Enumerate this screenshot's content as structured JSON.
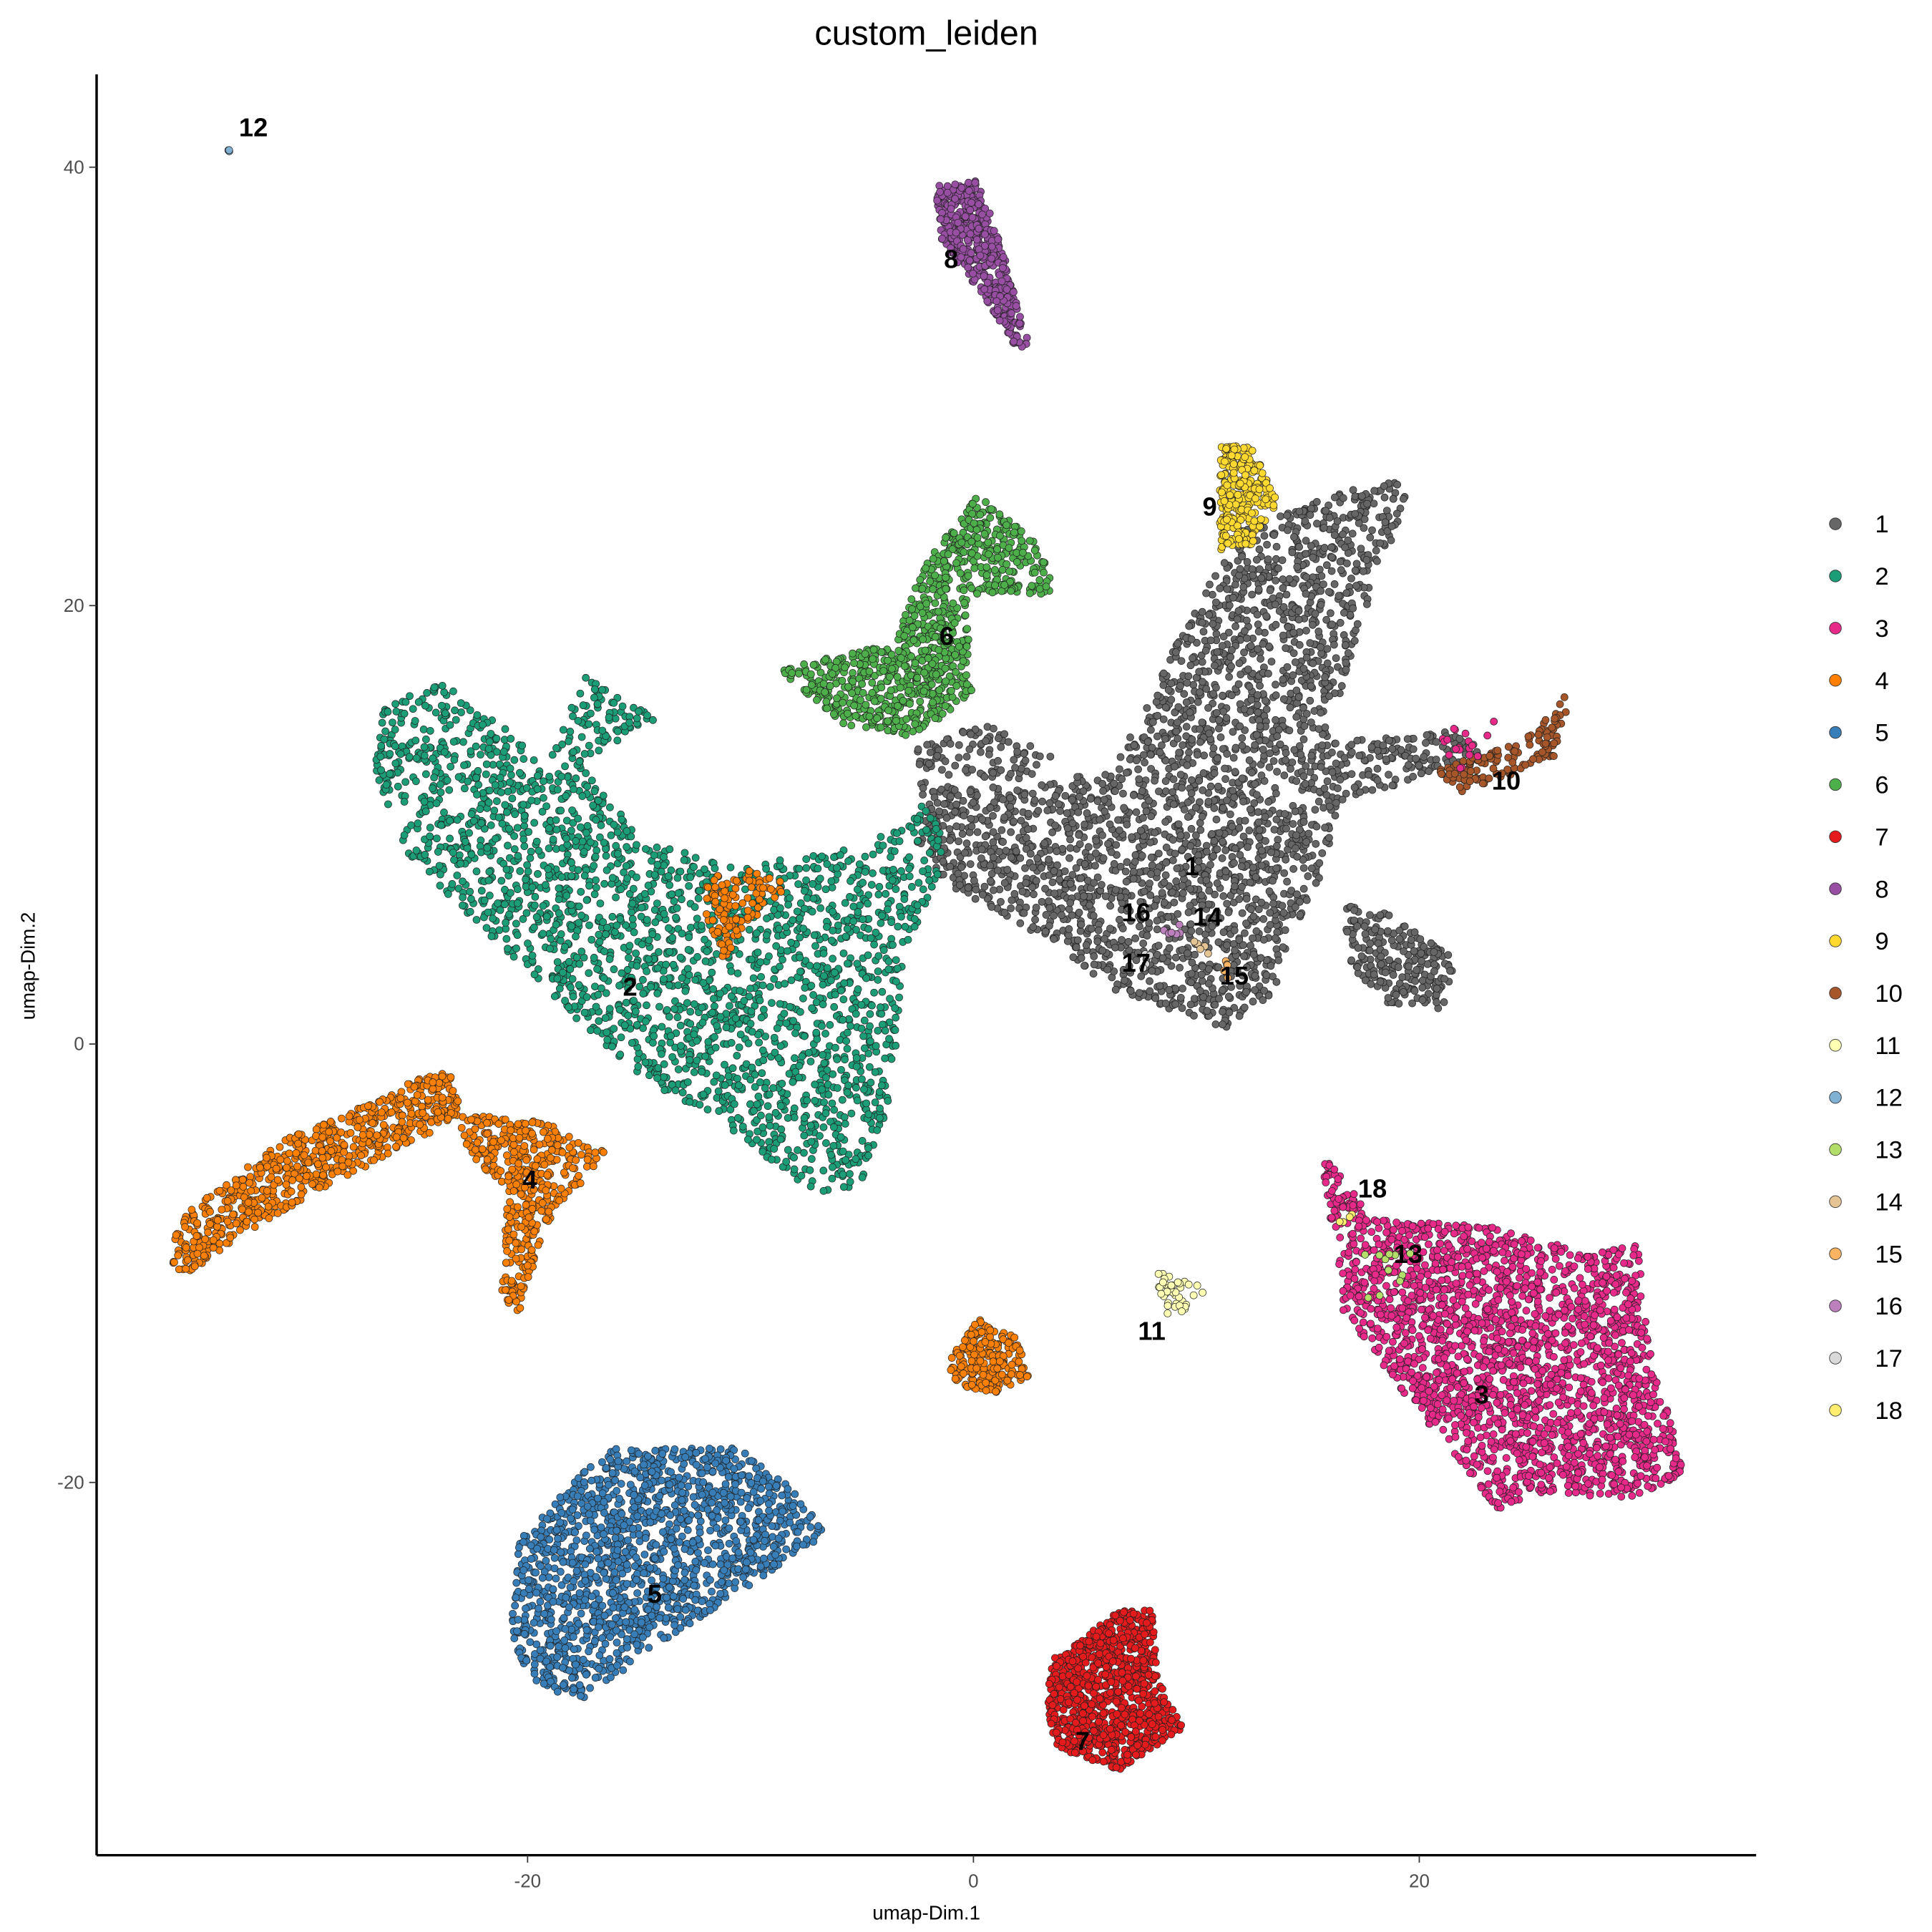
{
  "chart_data": {
    "type": "scatter",
    "title": "custom_leiden",
    "xlabel": "umap-Dim.1",
    "ylabel": "umap-Dim.2",
    "xlim": [
      -39.3,
      35.2
    ],
    "ylim": [
      -37,
      44.2
    ],
    "xticks": [
      {
        "value": -20,
        "label": "-20"
      },
      {
        "value": 0,
        "label": "0"
      },
      {
        "value": 20,
        "label": "20"
      }
    ],
    "yticks": [
      {
        "value": -20,
        "label": "-20"
      },
      {
        "value": 0,
        "label": "0"
      },
      {
        "value": 20,
        "label": "20"
      },
      {
        "value": 40,
        "label": "40"
      }
    ],
    "grid": false,
    "legend_position": "right",
    "clusters": [
      {
        "id": "1",
        "color": "#666666",
        "label_x": 9.8,
        "label_y": 8.1
      },
      {
        "id": "2",
        "color": "#1B9E77",
        "label_x": -15.4,
        "label_y": 2.6
      },
      {
        "id": "3",
        "color": "#E7298A",
        "label_x": 22.8,
        "label_y": -16.0
      },
      {
        "id": "4",
        "color": "#FF7F00",
        "label_x": -19.9,
        "label_y": -6.2
      },
      {
        "id": "5",
        "color": "#377EB8",
        "label_x": -14.3,
        "label_y": -25.1
      },
      {
        "id": "6",
        "color": "#4DAF4A",
        "label_x": -1.2,
        "label_y": 18.6
      },
      {
        "id": "7",
        "color": "#E41A1C",
        "label_x": 4.9,
        "label_y": -31.8
      },
      {
        "id": "8",
        "color": "#984EA3",
        "label_x": -1.0,
        "label_y": 35.8
      },
      {
        "id": "9",
        "color": "#FFD92F",
        "label_x": 10.6,
        "label_y": 24.5
      },
      {
        "id": "10",
        "color": "#A65628",
        "label_x": 23.9,
        "label_y": 12.0
      },
      {
        "id": "11",
        "color": "#FFFFB3",
        "label_x": 8.0,
        "label_y": -13.1
      },
      {
        "id": "12",
        "color": "#80B1D3",
        "label_x": -32.3,
        "label_y": 41.8
      },
      {
        "id": "13",
        "color": "#B3DE69",
        "label_x": 19.5,
        "label_y": -9.6
      },
      {
        "id": "14",
        "color": "#E5C494",
        "label_x": 10.5,
        "label_y": 5.8
      },
      {
        "id": "15",
        "color": "#FDB462",
        "label_x": 11.7,
        "label_y": 3.1
      },
      {
        "id": "16",
        "color": "#BC80BD",
        "label_x": 7.3,
        "label_y": 6.0
      },
      {
        "id": "17",
        "color": "#D9D9D9",
        "label_x": 7.3,
        "label_y": 3.7
      },
      {
        "id": "18",
        "color": "#FFED6F",
        "label_x": 17.9,
        "label_y": -6.6
      }
    ]
  }
}
